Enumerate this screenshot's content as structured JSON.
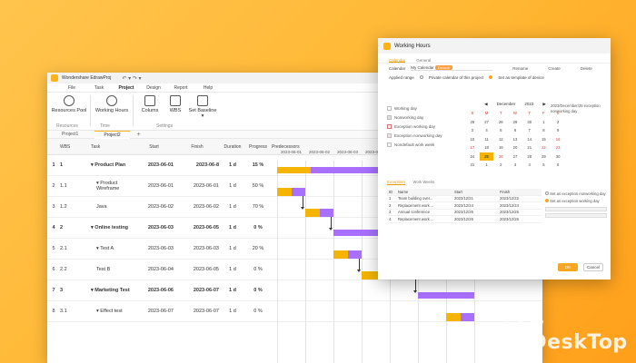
{
  "app": {
    "title": "Wondershare EdrawProj",
    "undo": "↶ ▾ ↷ ▾",
    "menu": [
      "File",
      "Task",
      "Project",
      "Design",
      "Report",
      "Help"
    ],
    "active_menu": "Project"
  },
  "ribbon": {
    "resources_pool": "Resources Pool",
    "working_hours": "Working Hours",
    "columns": "Colums",
    "wbs": "WBS",
    "set_baseline": "Set Baseline ▾",
    "group_resources": "Resources",
    "group_time": "Time",
    "group_settings": "Settings"
  },
  "doc_tabs": [
    "Project1",
    "Project2"
  ],
  "grid": {
    "headers": [
      "WBS",
      "Task",
      "Start",
      "Finish",
      "Duration",
      "Progress",
      "Predecessors"
    ],
    "rows": [
      {
        "num": "1",
        "wbs": "1",
        "task": "▾ Product Plan",
        "start": "2023-06-01",
        "finish": "2023-06-8",
        "dur": "1 d",
        "prog": "15 %"
      },
      {
        "num": "2",
        "wbs": "1.1",
        "task": "▾ Product Wireframe",
        "start": "2023-06-01",
        "finish": "2023-06-01",
        "dur": "1 d",
        "prog": "50 %"
      },
      {
        "num": "3",
        "wbs": "1.2",
        "task": "Java",
        "start": "2023-06-02",
        "finish": "2023-06-02",
        "dur": "1 d",
        "prog": "70 %"
      },
      {
        "num": "4",
        "wbs": "2",
        "task": "▾ Online testing",
        "start": "2023-06-03",
        "finish": "2023-06-05",
        "dur": "1 d",
        "prog": "0 %"
      },
      {
        "num": "5",
        "wbs": "2.1",
        "task": "▾ Test A",
        "start": "2023-06-03",
        "finish": "2023-06-03",
        "dur": "1 d",
        "prog": "20 %"
      },
      {
        "num": "6",
        "wbs": "2.2",
        "task": "Test B",
        "start": "2023-06-04",
        "finish": "2023-06-05",
        "dur": "1 d",
        "prog": "0 %"
      },
      {
        "num": "7",
        "wbs": "3",
        "task": "▾ Marketing Test",
        "start": "2023-06-06",
        "finish": "2023-06-07",
        "dur": "1 d",
        "prog": "0 %"
      },
      {
        "num": "8",
        "wbs": "3.1",
        "task": "▾ Effect test",
        "start": "2023-06-07",
        "finish": "2023-06-07",
        "dur": "1 d",
        "prog": "0 %"
      }
    ]
  },
  "gantt_dates": [
    "2023-06-01",
    "2023-06-02",
    "2023-06-03",
    "2023-06-04",
    "2023-06-05",
    "2023-06-06",
    "2023-06-07",
    "2023-06-08"
  ],
  "dialog": {
    "title": "Working Hours",
    "tabs": [
      "Calendar",
      "General"
    ],
    "calendar_label": "Calendar",
    "calendar_value": "My Calendar",
    "calendar_tag": "Default",
    "rename": "Rename",
    "create": "Create",
    "delete": "Delete",
    "applied_range": "Applied range",
    "private_calendar": "Private calendar of this project",
    "set_template": "Set as template of device",
    "legend": [
      "Working day",
      "Nonworking day",
      "Exception working day",
      "Exception nonworking day",
      "Nondefault work week"
    ],
    "month": "December",
    "year": "2023",
    "weekdays": [
      "S",
      "M",
      "T",
      "W",
      "T",
      "F",
      "S"
    ],
    "days": [
      "26",
      "27",
      "28",
      "29",
      "30",
      "1",
      "2",
      "3",
      "4",
      "5",
      "6",
      "7",
      "8",
      "9",
      "10",
      "11",
      "12",
      "13",
      "14",
      "15",
      "16",
      "17",
      "18",
      "19",
      "20",
      "21",
      "22",
      "23",
      "24",
      "25",
      "26",
      "27",
      "28",
      "29",
      "30",
      "31",
      "1",
      "2",
      "3",
      "4",
      "5",
      "6"
    ],
    "note": "2023/December/25 exception nonworking day",
    "sub_tabs": [
      "Exceptions",
      "Work Weeks"
    ],
    "ex_headers": [
      "ID",
      "Name",
      "Start",
      "Finish"
    ],
    "ex_rows": [
      {
        "id": "1",
        "name": "Team building over...",
        "start": "2023/12/21",
        "finish": "2023/12/22"
      },
      {
        "id": "2",
        "name": "Replacement work ...",
        "start": "2023/12/24",
        "finish": "2023/12/24"
      },
      {
        "id": "3",
        "name": "Annual conference",
        "start": "2023/12/25",
        "finish": "2023/12/25"
      },
      {
        "id": "4",
        "name": "Replacement work ...",
        "start": "2023/12/26",
        "finish": "2023/12/26"
      }
    ],
    "ex_opt1": "Set as exception nonworking day",
    "ex_opt2": "Set as exception working day",
    "ok": "OK",
    "cancel": "Cancel"
  },
  "watermark": "4 DeskTop",
  "colors": {
    "bar_yellow": "#f4b400",
    "bar_purple": "#a970ff",
    "accent": "#f5a623"
  }
}
